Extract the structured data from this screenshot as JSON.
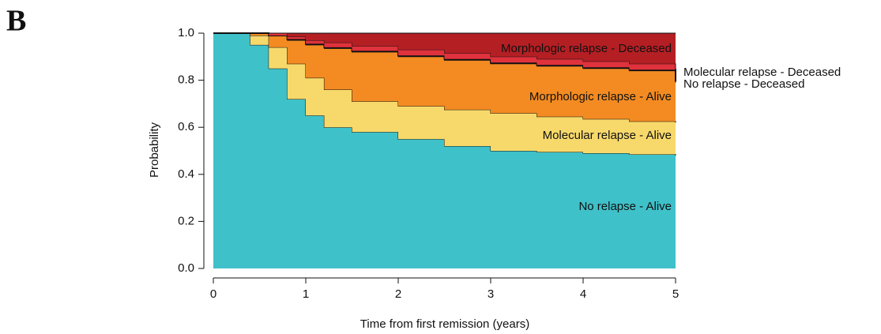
{
  "chart_data": {
    "type": "stacked_step_area",
    "panel_label": "B",
    "x_label": "Time from first remission (years)",
    "y_label": "Probability",
    "x": [
      0,
      0.2,
      0.4,
      0.6,
      0.8,
      1.0,
      1.2,
      1.5,
      2,
      2.5,
      3,
      3.5,
      4,
      4.5,
      5
    ],
    "series": [
      {
        "name": "No relapse - Alive",
        "color": "#3fc1c9",
        "values": [
          1.0,
          1.0,
          0.95,
          0.85,
          0.72,
          0.65,
          0.6,
          0.58,
          0.55,
          0.52,
          0.5,
          0.495,
          0.49,
          0.485,
          0.48
        ]
      },
      {
        "name": "Molecular relapse - Alive",
        "color": "#f7d96b",
        "values": [
          0,
          0,
          0.04,
          0.09,
          0.15,
          0.16,
          0.16,
          0.13,
          0.14,
          0.155,
          0.16,
          0.15,
          0.145,
          0.14,
          0.14
        ]
      },
      {
        "name": "Morphologic relapse  - Alive",
        "color": "#f38b22",
        "values": [
          0,
          0,
          0.01,
          0.05,
          0.1,
          0.14,
          0.175,
          0.21,
          0.21,
          0.21,
          0.21,
          0.215,
          0.215,
          0.215,
          0.17
        ]
      },
      {
        "name": "No relapse - Deceased",
        "color": "#111111",
        "values": [
          0,
          0,
          0,
          0,
          0.005,
          0.005,
          0.005,
          0.005,
          0.005,
          0.005,
          0.005,
          0.005,
          0.005,
          0.005,
          0.005
        ]
      },
      {
        "name": "Molecular relapse - Deceased",
        "color": "#e0323c",
        "values": [
          0,
          0,
          0,
          0.01,
          0.01,
          0.015,
          0.02,
          0.02,
          0.025,
          0.025,
          0.025,
          0.025,
          0.025,
          0.025,
          0.045
        ]
      },
      {
        "name": "Morphologic relapse - Deceased",
        "color": "#b41f24",
        "values": [
          0,
          0,
          0,
          0,
          0.015,
          0.03,
          0.04,
          0.055,
          0.07,
          0.085,
          0.1,
          0.11,
          0.12,
          0.13,
          0.16
        ]
      }
    ],
    "xlim": [
      0,
      5
    ],
    "xticks": [
      0,
      1,
      2,
      3,
      4,
      5
    ],
    "ylim": [
      0,
      1
    ],
    "yticks": [
      {
        "value": 0,
        "label": "0.0"
      },
      {
        "value": 0.2,
        "label": "0.2"
      },
      {
        "value": 0.4,
        "label": "0.4"
      },
      {
        "value": 0.6,
        "label": "0.6"
      },
      {
        "value": 0.8,
        "label": "0.8"
      },
      {
        "value": 1,
        "label": "1.0"
      }
    ]
  }
}
